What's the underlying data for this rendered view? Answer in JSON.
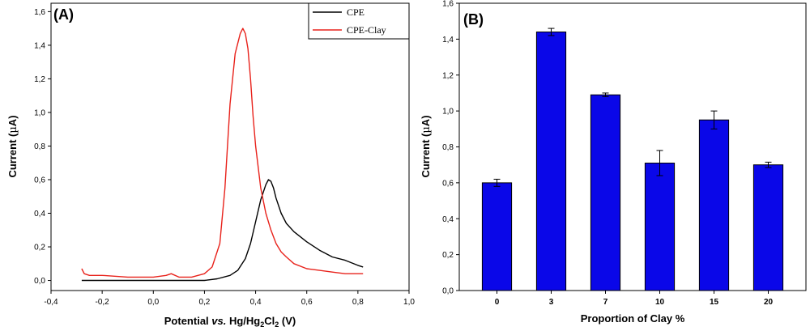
{
  "chart_data": [
    {
      "type": "line",
      "panel_label": "(A)",
      "xlabel": "Potential vs. Hg/Hg2Cl2 (V)",
      "xlabel_parts": [
        "Potential ",
        "vs.",
        " Hg/Hg",
        "2",
        "Cl",
        "2",
        " (V)"
      ],
      "ylabel": "Current (µA)",
      "ylabel_parts": [
        "Current (",
        "µ",
        "A)"
      ],
      "xlim": [
        -0.4,
        1.0
      ],
      "ylim": [
        -0.06,
        1.65
      ],
      "xticks": [
        "-0,4",
        "-0,2",
        "0,0",
        "0,2",
        "0,4",
        "0,6",
        "0,8",
        "1,0"
      ],
      "yticks": [
        "0,0",
        "0,2",
        "0,4",
        "0,6",
        "0,8",
        "1,0",
        "1,2",
        "1,4",
        "1,6"
      ],
      "grid": false,
      "legend_position": "top-right",
      "series": [
        {
          "name": "CPE",
          "color": "#000000",
          "x": [
            -0.28,
            -0.25,
            -0.2,
            -0.1,
            0.0,
            0.05,
            0.1,
            0.2,
            0.25,
            0.3,
            0.33,
            0.36,
            0.38,
            0.4,
            0.42,
            0.44,
            0.45,
            0.46,
            0.47,
            0.48,
            0.5,
            0.52,
            0.55,
            0.6,
            0.65,
            0.7,
            0.75,
            0.8,
            0.82
          ],
          "y": [
            0.0,
            0.0,
            0.0,
            0.0,
            0.0,
            0.0,
            0.0,
            0.0,
            0.01,
            0.03,
            0.06,
            0.13,
            0.22,
            0.35,
            0.48,
            0.57,
            0.6,
            0.59,
            0.55,
            0.49,
            0.4,
            0.34,
            0.29,
            0.23,
            0.18,
            0.14,
            0.12,
            0.09,
            0.08
          ]
        },
        {
          "name": "CPE-Clay",
          "color": "#e8221b",
          "x": [
            -0.28,
            -0.27,
            -0.25,
            -0.2,
            -0.1,
            0.0,
            0.05,
            0.07,
            0.1,
            0.15,
            0.2,
            0.23,
            0.26,
            0.28,
            0.3,
            0.32,
            0.34,
            0.35,
            0.36,
            0.37,
            0.38,
            0.39,
            0.4,
            0.42,
            0.44,
            0.46,
            0.48,
            0.5,
            0.52,
            0.55,
            0.6,
            0.65,
            0.7,
            0.75,
            0.8,
            0.82
          ],
          "y": [
            0.07,
            0.04,
            0.03,
            0.03,
            0.02,
            0.02,
            0.03,
            0.04,
            0.02,
            0.02,
            0.04,
            0.08,
            0.22,
            0.55,
            1.05,
            1.35,
            1.47,
            1.5,
            1.47,
            1.38,
            1.2,
            0.98,
            0.8,
            0.55,
            0.4,
            0.3,
            0.22,
            0.17,
            0.14,
            0.1,
            0.07,
            0.06,
            0.05,
            0.04,
            0.04,
            0.04
          ]
        }
      ]
    },
    {
      "type": "bar",
      "panel_label": "(B)",
      "xlabel": "Proportion of Clay %",
      "ylabel": "Current (µA)",
      "ylabel_parts": [
        "Current (",
        "µ",
        "A)"
      ],
      "categories": [
        "0",
        "3",
        "7",
        "10",
        "15",
        "20"
      ],
      "values": [
        0.6,
        1.44,
        1.09,
        0.71,
        0.95,
        0.7
      ],
      "errors": [
        0.02,
        0.02,
        0.01,
        0.07,
        0.05,
        0.015
      ],
      "ylim": [
        0.0,
        1.6
      ],
      "yticks": [
        "0,0",
        "0,2",
        "0,4",
        "0,6",
        "0,8",
        "1,0",
        "1,2",
        "1,4",
        "1,6"
      ],
      "grid": false,
      "bar_color": "#0a07e8"
    }
  ]
}
